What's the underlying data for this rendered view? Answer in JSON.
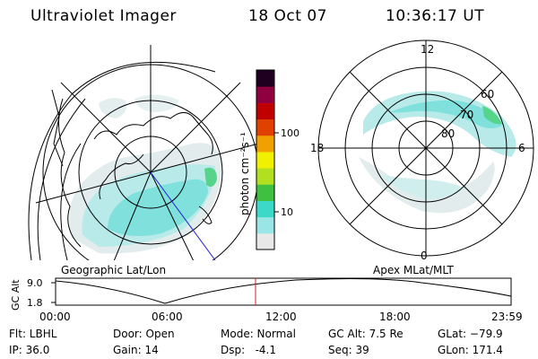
{
  "header": {
    "instrument": "Ultraviolet Imager",
    "date": "18 Oct 07",
    "time": "10:36:17 UT"
  },
  "colorbar": {
    "label": "photon cm⁻²s⁻¹",
    "ticks": [
      "100",
      "10"
    ],
    "scale": "log",
    "colors": [
      "#e8e8e8",
      "#9ae6e6",
      "#3cd8c8",
      "#40c040",
      "#b0e020",
      "#f0f000",
      "#f0a000",
      "#e04000",
      "#c00000",
      "#900040",
      "#200020"
    ]
  },
  "geographic_map": {
    "label": "Geographic Lat/Lon"
  },
  "apex_map": {
    "label": "Apex MLat/MLT",
    "mlt_labels": [
      "12",
      "18",
      "6",
      "0"
    ],
    "mlat_labels": [
      "60",
      "70",
      "80"
    ]
  },
  "altitude_plot": {
    "ylabel": "GC Alt",
    "yticks": [
      "9.0",
      "1.8"
    ],
    "xticks": [
      "00:00",
      "06:00",
      "12:00",
      "18:00",
      "23:59"
    ],
    "current_time_color": "#d02020"
  },
  "info": {
    "flt": "Flt: LBHL",
    "ip": "IP: 36.0",
    "door": "Door: Open",
    "gain": "Gain: 14",
    "mode": "Mode: Normal",
    "dsp": "Dsp:   -4.1",
    "gc_alt": "GC Alt: 7.5 Re",
    "seq": "Seq: 39",
    "glat": "GLat: −79.9",
    "glon": "GLon: 171.4"
  }
}
